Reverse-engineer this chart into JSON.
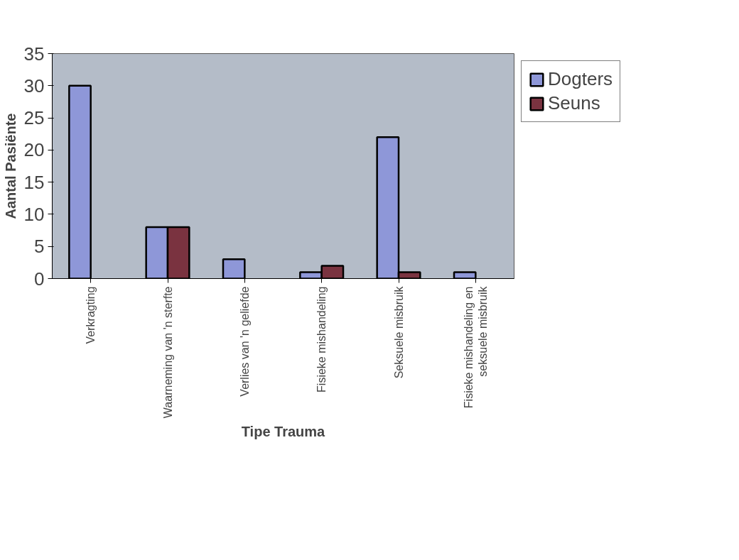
{
  "chart_data": {
    "type": "bar",
    "xlabel": "Tipe Trauma",
    "ylabel": "Aantal Pasiënte",
    "categories": [
      "Verkragting",
      "Waarneming van 'n sterfte",
      "Verlies van 'n geliefde",
      "Fisieke mishandeling",
      "Seksuele misbruik",
      "Fisieke mishandeling en seksuele misbruik"
    ],
    "series": [
      {
        "name": "Dogters",
        "color": "#8e97d8",
        "values": [
          30,
          8,
          3,
          1,
          22,
          1
        ]
      },
      {
        "name": "Seuns",
        "color": "#7a3340",
        "values": [
          null,
          8,
          null,
          2,
          1,
          null
        ]
      }
    ],
    "ylim": [
      0,
      35
    ],
    "yticks": [
      0,
      5,
      10,
      15,
      20,
      25,
      30,
      35
    ],
    "grid": false,
    "legend": "right"
  }
}
